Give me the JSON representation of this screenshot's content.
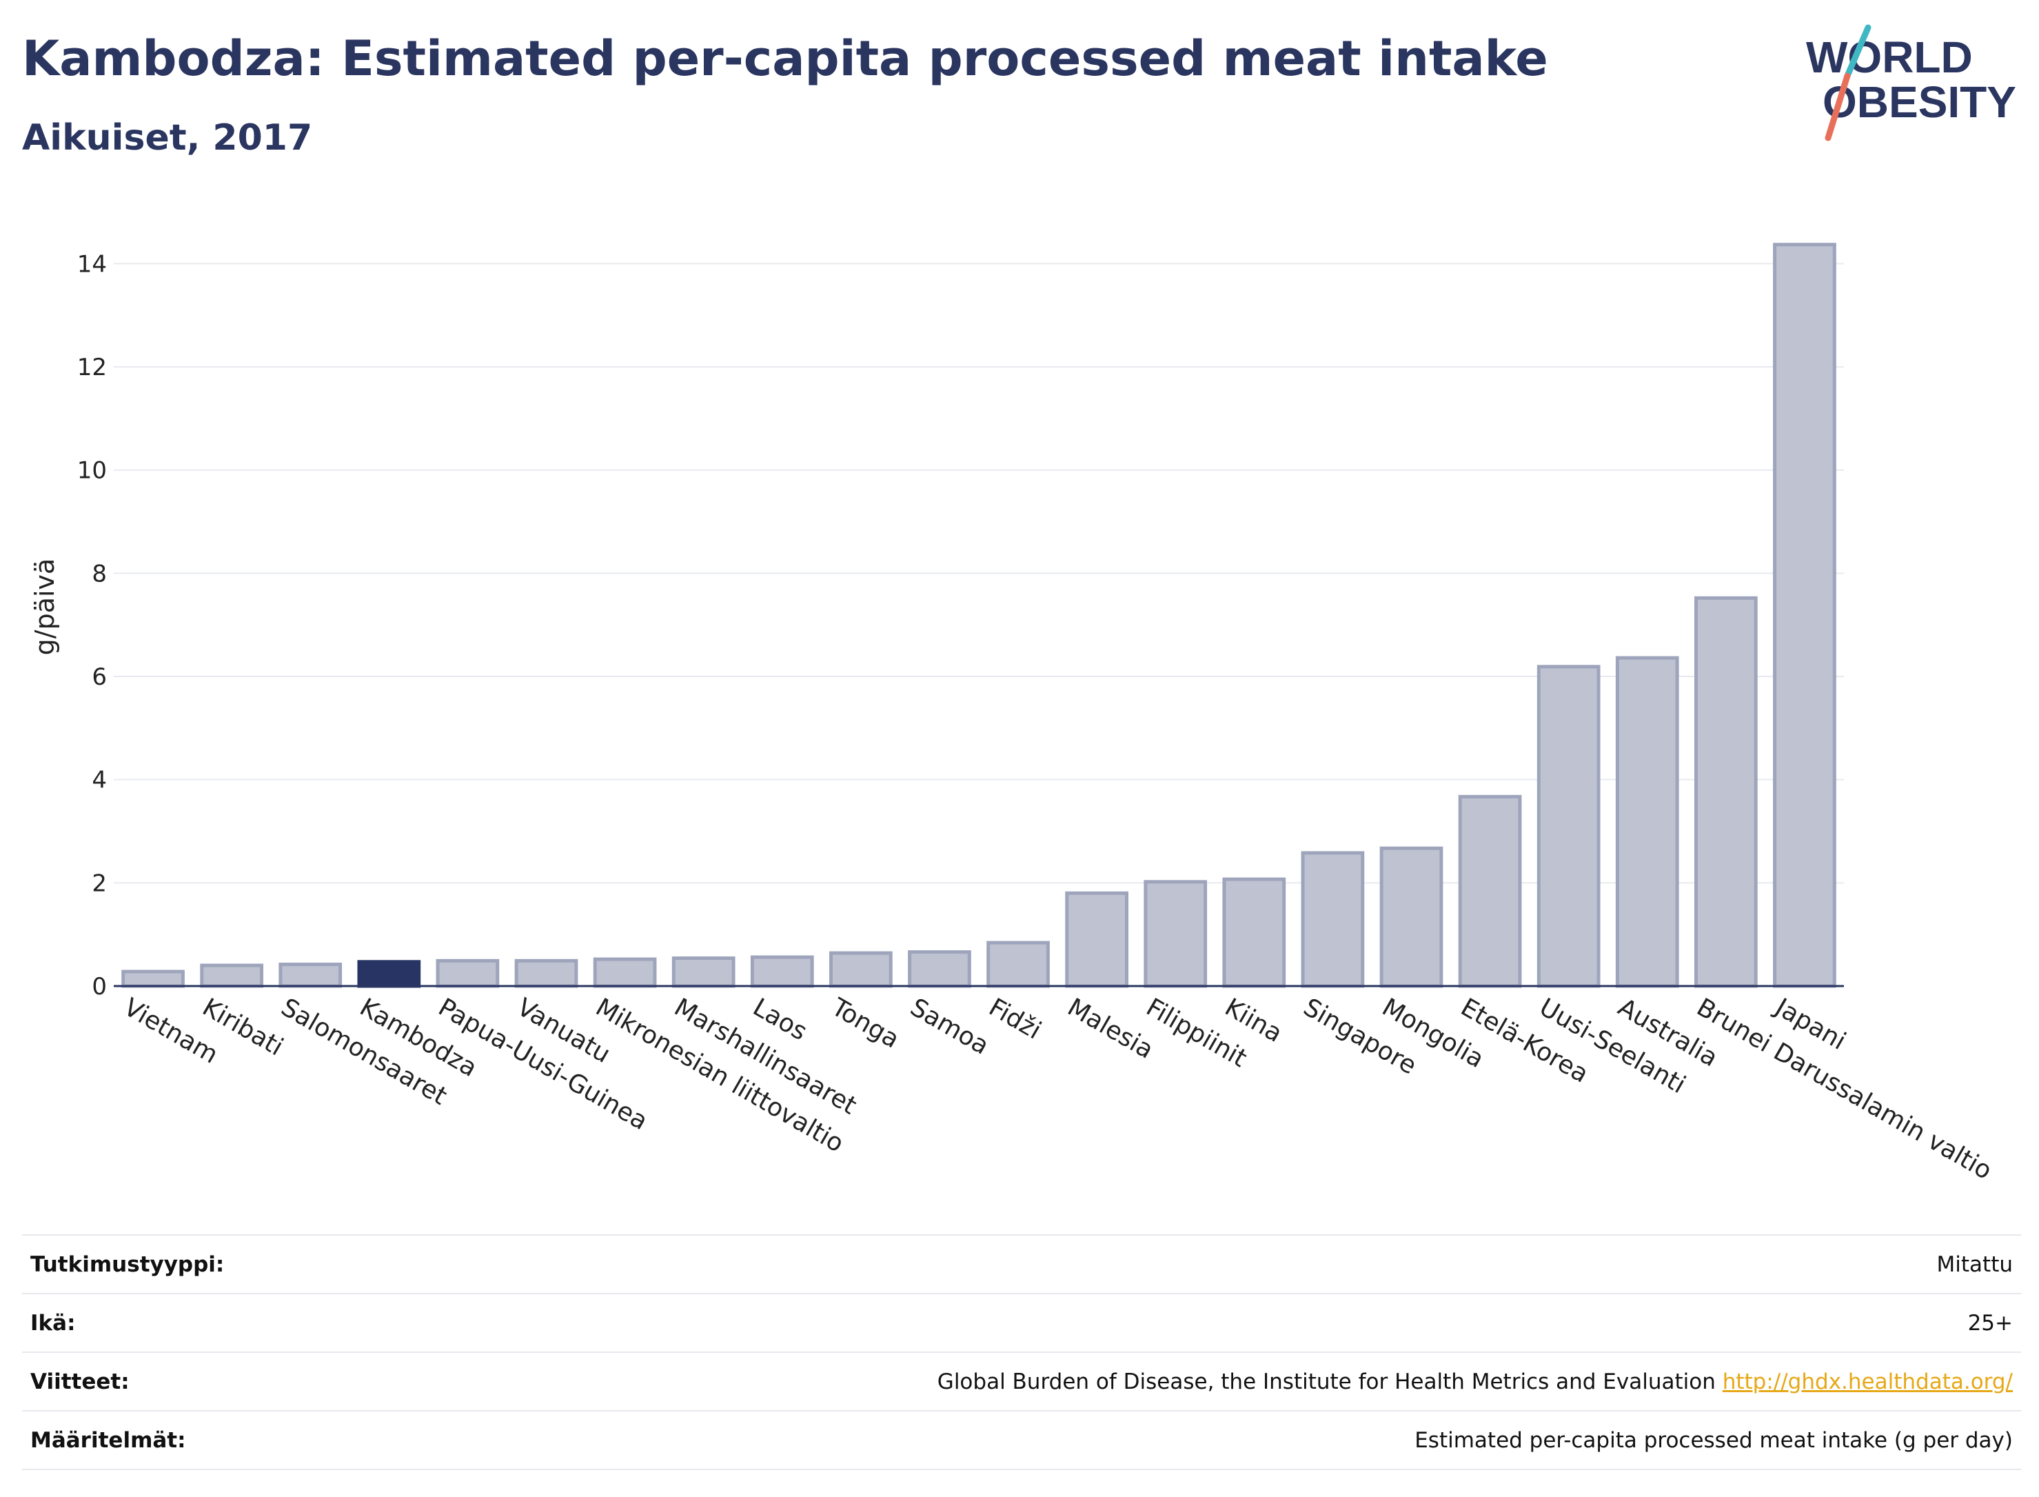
{
  "header": {
    "title": "Kambodza: Estimated per-capita processed meat intake",
    "subtitle": "Aikuiset, 2017"
  },
  "logo": {
    "line1": "WORLD",
    "line2": "OBESITY"
  },
  "colors": {
    "highlight": "#283463",
    "bar": "#bfc3d1",
    "bar_stroke": "#9ea4bb",
    "axis": "#2a3560"
  },
  "chart_data": {
    "type": "bar",
    "ylabel": "g/päivä",
    "ylim": [
      0,
      14.7
    ],
    "yticks": [
      0,
      2,
      4,
      6,
      8,
      10,
      12,
      14
    ],
    "highlight": "Kambodza",
    "categories": [
      "Vietnam",
      "Kiribati",
      "Salomonsaaret",
      "Kambodza",
      "Papua-Uusi-Guinea",
      "Vanuatu",
      "Mikronesian liittovaltio",
      "Marshallinsaaret",
      "Laos",
      "Tonga",
      "Samoa",
      "Fidži",
      "Malesia",
      "Filippiinit",
      "Kiina",
      "Singapore",
      "Mongolia",
      "Etelä-Korea",
      "Uusi-Seelanti",
      "Australia",
      "Brunei Darussalamin valtio",
      "Japani"
    ],
    "values": [
      0.28,
      0.4,
      0.42,
      0.47,
      0.49,
      0.49,
      0.52,
      0.54,
      0.56,
      0.64,
      0.66,
      0.84,
      1.8,
      2.02,
      2.07,
      2.58,
      2.67,
      3.67,
      6.19,
      6.36,
      7.52,
      14.37
    ]
  },
  "info": [
    {
      "label": "Tutkimustyyppi:",
      "value": "Mitattu"
    },
    {
      "label": "Ikä:",
      "value": "25+"
    },
    {
      "label": "Viitteet:",
      "value": "Global Burden of Disease, the Institute for Health Metrics and Evaluation",
      "link": "http://ghdx.healthdata.org/"
    },
    {
      "label": "Määritelmät:",
      "value": "Estimated per-capita processed meat intake (g per day)"
    }
  ]
}
